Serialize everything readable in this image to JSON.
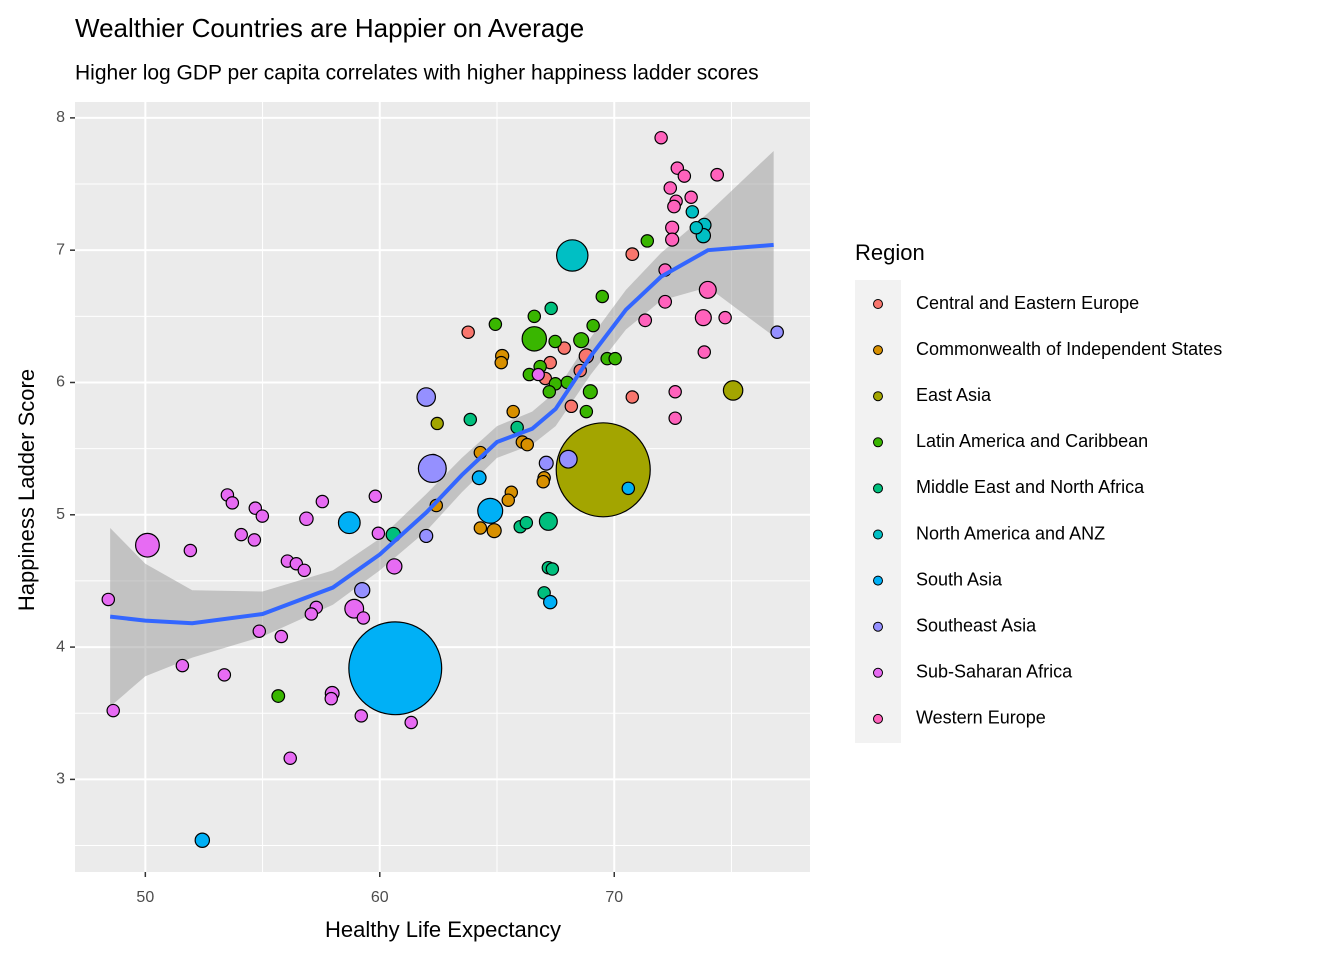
{
  "chart_data": {
    "type": "scatter",
    "title": "Wealthier Countries are Happier on Average",
    "subtitle": "Higher log GDP per capita correlates with higher happiness ladder scores",
    "x_label": "Healthy Life Expectancy",
    "y_label": "Happiness Ladder Score",
    "legend_title": "Region",
    "legend_position": "right",
    "grid": true,
    "xlim": [
      47.0,
      78.35
    ],
    "ylim": [
      2.3,
      8.12
    ],
    "xticks": [
      50,
      60,
      70
    ],
    "yticks": [
      3,
      4,
      5,
      6,
      7,
      8
    ],
    "smooth": {
      "color": "#3366FF",
      "band_color": "#999999",
      "x": [
        48.5,
        50,
        52,
        55,
        58,
        60,
        62,
        63.5,
        65,
        66.5,
        67.5,
        69,
        70.5,
        72,
        74,
        76.8
      ],
      "y": [
        4.23,
        4.2,
        4.18,
        4.25,
        4.45,
        4.7,
        5.02,
        5.3,
        5.55,
        5.65,
        5.8,
        6.2,
        6.55,
        6.8,
        7.0,
        7.04
      ],
      "ymin": [
        3.55,
        3.78,
        3.92,
        4.08,
        4.32,
        4.58,
        4.88,
        5.17,
        5.43,
        5.53,
        5.67,
        6.06,
        6.4,
        6.62,
        6.72,
        6.35
      ],
      "ymax": [
        4.9,
        4.63,
        4.43,
        4.42,
        4.58,
        4.82,
        5.16,
        5.43,
        5.67,
        5.78,
        5.93,
        6.34,
        6.7,
        6.98,
        7.28,
        7.75
      ]
    },
    "series": [
      {
        "name": "Central and Eastern Europe",
        "color": "#F8766D",
        "x": [
          63.77,
          70.77,
          67.27,
          67.87,
          68.55,
          68.81,
          68.17,
          70.77,
          68.68,
          68.93,
          67.06
        ],
        "y": [
          6.38,
          6.97,
          6.15,
          6.26,
          6.09,
          6.2,
          5.82,
          5.89,
          5.59,
          5.13,
          6.03
        ],
        "size": [
          5,
          10,
          5,
          5,
          5,
          38,
          5,
          5,
          5,
          5,
          5
        ]
      },
      {
        "name": "Commonwealth of Independent States",
        "color": "#D89000",
        "x": [
          65.22,
          65.18,
          65.69,
          64.29,
          66.08,
          66.29,
          65.61,
          65.48,
          62.41,
          64.29,
          64.88,
          67.01,
          66.97
        ],
        "y": [
          6.2,
          6.15,
          5.78,
          5.47,
          5.55,
          5.53,
          5.17,
          5.11,
          5.07,
          4.9,
          4.88,
          5.28,
          5.25
        ],
        "size": [
          19,
          5,
          5,
          5,
          5,
          5,
          5,
          5,
          5,
          5,
          34,
          5,
          5
        ]
      },
      {
        "name": "East Asia",
        "color": "#A3A500",
        "x": [
          69.53,
          75.07,
          62.45
        ],
        "y": [
          5.34,
          5.94,
          5.69
        ],
        "size": [
          1400,
          126,
          3
        ]
      },
      {
        "name": "Latin America and Caribbean",
        "color": "#39B600",
        "x": [
          69.49,
          71.41,
          64.93,
          66.59,
          66.59,
          68.59,
          69.1,
          67.48,
          69.7,
          70.04,
          66.38,
          67.49,
          67.23,
          68.98,
          68.81,
          68.0,
          66.84,
          62.28,
          55.67
        ],
        "y": [
          6.65,
          7.07,
          6.44,
          6.5,
          6.33,
          6.32,
          6.43,
          6.31,
          6.18,
          6.18,
          6.06,
          5.99,
          5.93,
          5.93,
          5.78,
          6.0,
          6.12,
          5.41,
          3.63
        ],
        "size": [
          5,
          5,
          5,
          5,
          210,
          50,
          5,
          5,
          5,
          5,
          5,
          5,
          5,
          33,
          5,
          5,
          5,
          5,
          11
        ]
      },
      {
        "name": "Middle East and North Africa",
        "color": "#00BF7D",
        "x": [
          67.31,
          63.86,
          65.86,
          65.99,
          66.25,
          67.19,
          67.19,
          67.36,
          67.01,
          60.58
        ],
        "y": [
          6.56,
          5.72,
          5.66,
          4.91,
          4.94,
          4.95,
          4.6,
          4.59,
          4.41,
          4.85
        ],
        "size": [
          5,
          5,
          5,
          5,
          5,
          100,
          5,
          5,
          5,
          40
        ]
      },
      {
        "name": "North America and ANZ",
        "color": "#00BFC4",
        "x": [
          68.21,
          73.33,
          73.84,
          73.8,
          73.5
        ],
        "y": [
          6.96,
          7.29,
          7.19,
          7.11,
          7.17
        ],
        "size": [
          330,
          5,
          25,
          38,
          5
        ]
      },
      {
        "name": "South Asia",
        "color": "#00B0F6",
        "x": [
          60.66,
          58.7,
          64.71,
          64.24,
          70.6,
          67.27,
          52.43
        ],
        "y": [
          3.84,
          4.94,
          5.03,
          5.28,
          5.2,
          4.34,
          2.54
        ],
        "size": [
          1380,
          165,
          220,
          29,
          5,
          21,
          39
        ]
      },
      {
        "name": "Southeast Asia",
        "color": "#9590FF",
        "x": [
          61.98,
          62.24,
          68.04,
          67.1,
          61.98,
          59.25,
          76.95
        ],
        "y": [
          5.89,
          5.35,
          5.42,
          5.39,
          4.84,
          4.43,
          6.38
        ],
        "size": [
          110,
          270,
          97,
          32,
          17,
          54,
          6
        ]
      },
      {
        "name": "Sub-Saharan Africa",
        "color": "#E76BF3",
        "x": [
          50.09,
          48.42,
          48.63,
          51.92,
          51.58,
          53.37,
          53.5,
          53.71,
          54.09,
          54.69,
          54.65,
          54.99,
          54.86,
          55.8,
          56.06,
          56.44,
          56.78,
          56.87,
          57.55,
          57.29,
          57.08,
          58.91,
          59.3,
          57.97,
          57.93,
          59.21,
          61.34,
          56.18,
          59.81,
          59.94,
          60.62,
          66.76
        ],
        "y": [
          4.77,
          4.36,
          3.52,
          4.73,
          3.86,
          3.79,
          5.15,
          5.09,
          4.85,
          5.05,
          4.81,
          4.99,
          4.12,
          4.08,
          4.65,
          4.63,
          4.58,
          4.97,
          5.1,
          4.3,
          4.25,
          4.29,
          4.22,
          3.65,
          3.61,
          3.48,
          3.43,
          3.16,
          5.14,
          4.86,
          4.61,
          6.06
        ],
        "size": [
          200,
          5,
          5,
          5,
          5,
          5,
          5,
          5,
          5,
          5,
          5,
          5,
          5,
          5,
          5,
          5,
          5,
          24,
          5,
          5,
          5,
          115,
          5,
          30,
          5,
          5,
          5,
          5,
          5,
          5,
          54,
          1
        ]
      },
      {
        "name": "Western Europe",
        "color": "#FF62BC",
        "x": [
          72.0,
          72.39,
          72.69,
          72.99,
          74.39,
          73.28,
          72.64,
          72.55,
          72.47,
          72.47,
          72.17,
          73.99,
          72.17,
          73.8,
          74.73,
          71.32,
          73.84,
          72.6,
          72.6
        ],
        "y": [
          7.85,
          7.47,
          7.62,
          7.56,
          7.57,
          7.4,
          7.37,
          7.33,
          7.17,
          7.08,
          6.85,
          6.7,
          6.61,
          6.49,
          6.49,
          6.47,
          6.23,
          5.93,
          5.73
        ],
        "size": [
          5,
          6,
          5,
          5,
          9,
          5,
          5,
          10,
          17,
          17,
          5,
          83,
          11,
          67,
          5,
          10,
          5,
          5,
          5
        ]
      }
    ]
  }
}
